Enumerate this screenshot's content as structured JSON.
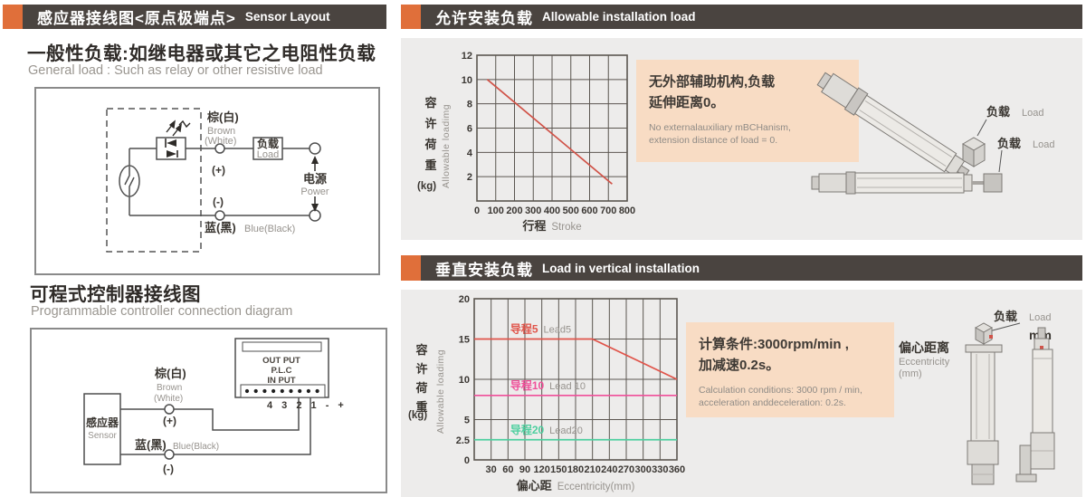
{
  "colors": {
    "accent_orange": "#e06f3a",
    "header_bg": "#4a4440",
    "panel_bg": "#edeceb",
    "note_bg": "#f8dcc4",
    "grid": "#5b5650",
    "series_red": "#d05247",
    "series_pink": "#f0509a",
    "series_green": "#4ecf9f",
    "dark_text": "#3a3631",
    "gray_text": "#97938e"
  },
  "left": {
    "header": {
      "zh": "感应器接线图<原点极端点>",
      "en": "Sensor Layout"
    },
    "sec1": {
      "title_zh": "一般性负载:如继电器或其它之电阻性负载",
      "title_en": "General load : Such as relay or other resistive load"
    },
    "circuit1": {
      "brown_zh": "棕(白)",
      "brown_en1": "Brown",
      "brown_en2": "(White)",
      "plus": "(+)",
      "minus": "(-)",
      "blue_zh": "蓝(黑)",
      "blue_en": "Blue(Black)",
      "load_zh": "负载",
      "load_en": "Load",
      "power_zh": "电源",
      "power_en": "Power"
    },
    "sec2": {
      "title_zh": "可程式控制器接线图",
      "title_en": "Programmable controller connection diagram"
    },
    "circuit2": {
      "sensor_zh": "感应器",
      "sensor_en": "Sensor",
      "plc1": "OUT PUT",
      "plc2": "P.L.C",
      "plc3": "IN PUT",
      "terminals": "4 3 2 1 - +",
      "brown_zh": "棕(白)",
      "brown_en1": "Brown",
      "brown_en2": "(White)",
      "plus": "(+)",
      "minus": "(-)",
      "blue_zh": "蓝(黑)",
      "blue_en": "Blue(Black)"
    }
  },
  "right": {
    "sec1": {
      "header_zh": "允许安装负载",
      "header_en": "Allowable installation load",
      "note_zh": "无外部辅助机构,负载\n延伸距离0。",
      "note_en": "No externalauxiliary mBCHanism,\nextension distance of load = 0.",
      "load_zh": "负载",
      "load_en": "Load",
      "ylabel_zh": "容\n许\n荷\n重",
      "ylabel_unit": "(kg)",
      "ylabel_en": "Allowable loadimg",
      "xlabel_zh": "行程",
      "xlabel_en": "Stroke"
    },
    "sec2": {
      "header_zh": "垂直安装负载",
      "header_en": "Load in vertical installation",
      "note_zh": "计算条件:3000rpm/min ,\n加减速0.2s。",
      "note_en": "Calculation conditions: 3000 rpm / min,\nacceleration anddeceleration: 0.2s.",
      "load_zh": "负载",
      "load_en": "Load",
      "mm": "mm",
      "ecc_zh": "偏心距离",
      "ecc_en": "Eccentricity",
      "ecc_unit": "(mm)",
      "ylabel_zh": "容\n许\n荷\n重",
      "ylabel_unit": "(kg)",
      "ylabel_en": "Allowable loadimg",
      "xlabel_zh": "偏心距",
      "xlabel_en": "Eccentricity(mm)"
    }
  },
  "chart_data": [
    {
      "type": "line",
      "title": "允许安装负载 Allowable installation load",
      "xlabel": "行程 Stroke",
      "ylabel": "容许荷重(kg) Allowable loadimg",
      "xlim": [
        0,
        800
      ],
      "ylim": [
        0,
        12
      ],
      "grid": true,
      "legend_position": "none",
      "xticks": [
        0,
        100,
        200,
        300,
        400,
        500,
        600,
        700,
        800
      ],
      "xtick_labels": [
        "0",
        "100",
        "200",
        "300",
        "400",
        "500",
        "600",
        "700",
        "800"
      ],
      "yticks": [
        0,
        2,
        4,
        6,
        8,
        10,
        12
      ],
      "ytick_labels": [
        "",
        "2",
        "4",
        "6",
        "8",
        "10",
        "12"
      ],
      "series": [
        {
          "name": "allowable-load",
          "color": "#d05247",
          "points": [
            [
              55,
              10
            ],
            [
              720,
              1.4
            ]
          ]
        }
      ]
    },
    {
      "type": "line",
      "title": "垂直安装负载 Load in vertical installation",
      "xlabel": "偏心距 Eccentricity(mm)",
      "ylabel": "容许荷重(kg) Allowable loadimg",
      "xlim": [
        0,
        360
      ],
      "ylim": [
        0,
        20
      ],
      "grid": true,
      "legend_position": "inline-labels",
      "xticks": [
        0,
        30,
        60,
        90,
        120,
        150,
        180,
        210,
        240,
        270,
        300,
        330,
        360
      ],
      "xtick_labels": [
        "",
        "30",
        "60",
        "90",
        "120",
        "150",
        "180",
        "210",
        "240",
        "270",
        "300",
        "330",
        "360"
      ],
      "yticks": [
        0,
        2.5,
        5,
        10,
        15,
        20
      ],
      "ytick_labels": [
        "0",
        "2.5",
        "5",
        "10",
        "15",
        "20"
      ],
      "series": [
        {
          "name": "导程5 Lead5",
          "color": "#e0544a",
          "points": [
            [
              0,
              15
            ],
            [
              210,
              15
            ],
            [
              360,
              10
            ]
          ],
          "label": {
            "zh": "导程5",
            "en": "Lead5",
            "x": 64,
            "y": 15
          }
        },
        {
          "name": "导程10 Lead 10",
          "color": "#f0509a",
          "points": [
            [
              0,
              8
            ],
            [
              360,
              8
            ]
          ],
          "label": {
            "zh": "导程10",
            "en": "Lead 10",
            "x": 64,
            "y": 8
          }
        },
        {
          "name": "导程20 Lead20",
          "color": "#4ecf9f",
          "points": [
            [
              0,
              2.5
            ],
            [
              360,
              2.5
            ]
          ],
          "label": {
            "zh": "导程20",
            "en": "Lead20",
            "x": 64,
            "y": 2.5
          }
        }
      ]
    }
  ]
}
